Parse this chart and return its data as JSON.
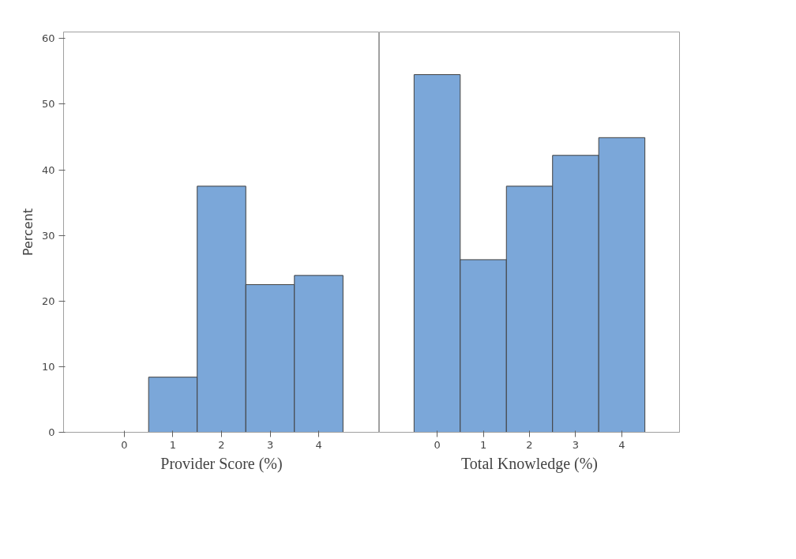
{
  "chart_data": [
    {
      "type": "bar",
      "xlabel": "Provider Score (%)",
      "ylabel": "Percent",
      "categories": [
        "0",
        "1",
        "2",
        "3",
        "4"
      ],
      "values": [
        null,
        8.4,
        37.5,
        22.5,
        23.9
      ],
      "color": "#7ba7d9",
      "ylim": [
        0,
        61
      ],
      "yticks": [
        0,
        10,
        20,
        30,
        40,
        50,
        60
      ],
      "grid": false
    },
    {
      "type": "bar",
      "xlabel": "Total Knowledge (%)",
      "categories": [
        "0",
        "1",
        "2",
        "3",
        "4"
      ],
      "values": [
        54.5,
        26.3,
        37.5,
        42.2,
        44.9
      ],
      "color": "#7ba7d9",
      "ylim": [
        0,
        61
      ],
      "yticks": [
        0,
        10,
        20,
        30,
        40,
        50,
        60
      ],
      "grid": false,
      "tick_labels": "x"
    }
  ]
}
